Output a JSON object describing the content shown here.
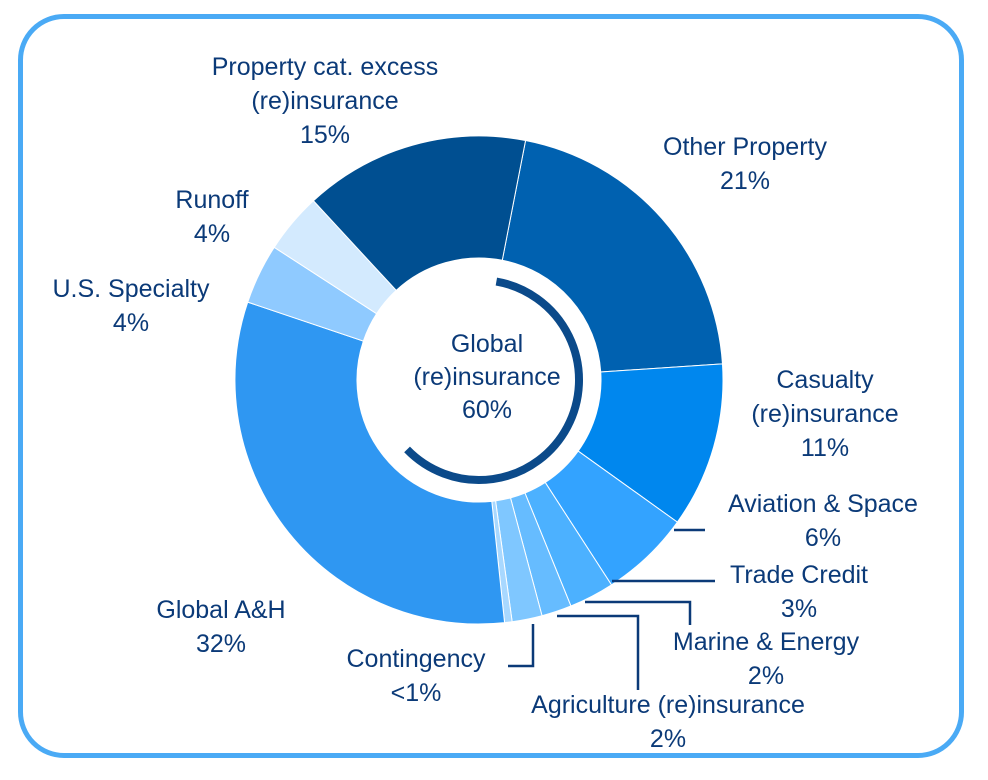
{
  "chart_data": {
    "type": "pie",
    "variant": "donut",
    "center_label": {
      "lines": [
        "Global",
        "(re)insurance"
      ],
      "value": "60%"
    },
    "center_arc_value": 60,
    "slices": [
      {
        "name_lines": [
          "Other Property"
        ],
        "value": 21,
        "label": "21%",
        "color": "#0061b0"
      },
      {
        "name_lines": [
          "Casualty",
          "(re)insurance"
        ],
        "value": 11,
        "label": "11%",
        "color": "#0087ee"
      },
      {
        "name_lines": [
          "Aviation & Space"
        ],
        "value": 6,
        "label": "6%",
        "color": "#33a3ff"
      },
      {
        "name_lines": [
          "Trade Credit"
        ],
        "value": 3,
        "label": "3%",
        "color": "#4cb1ff"
      },
      {
        "name_lines": [
          "Marine & Energy"
        ],
        "value": 2,
        "label": "2%",
        "color": "#66bcff"
      },
      {
        "name_lines": [
          "Agriculture (re)insurance"
        ],
        "value": 2,
        "label": "2%",
        "color": "#7fc7ff"
      },
      {
        "name_lines": [
          "Contingency"
        ],
        "value": 0.5,
        "label": "<1%",
        "color": "#a8d8ff"
      },
      {
        "name_lines": [
          "Global A&H"
        ],
        "value": 32,
        "label": "32%",
        "color": "#2f97f2"
      },
      {
        "name_lines": [
          "U.S. Specialty"
        ],
        "value": 4,
        "label": "4%",
        "color": "#8fcaff"
      },
      {
        "name_lines": [
          "Runoff"
        ],
        "value": 4,
        "label": "4%",
        "color": "#d3eafe"
      },
      {
        "name_lines": [
          "Property cat. excess",
          "(re)insurance"
        ],
        "value": 15,
        "label": "15%",
        "color": "#004f91"
      }
    ],
    "colors": {
      "label_text": "#0b3a78",
      "frame_border": "#4aaaf5",
      "center_arc": "#0b4a8a"
    }
  }
}
